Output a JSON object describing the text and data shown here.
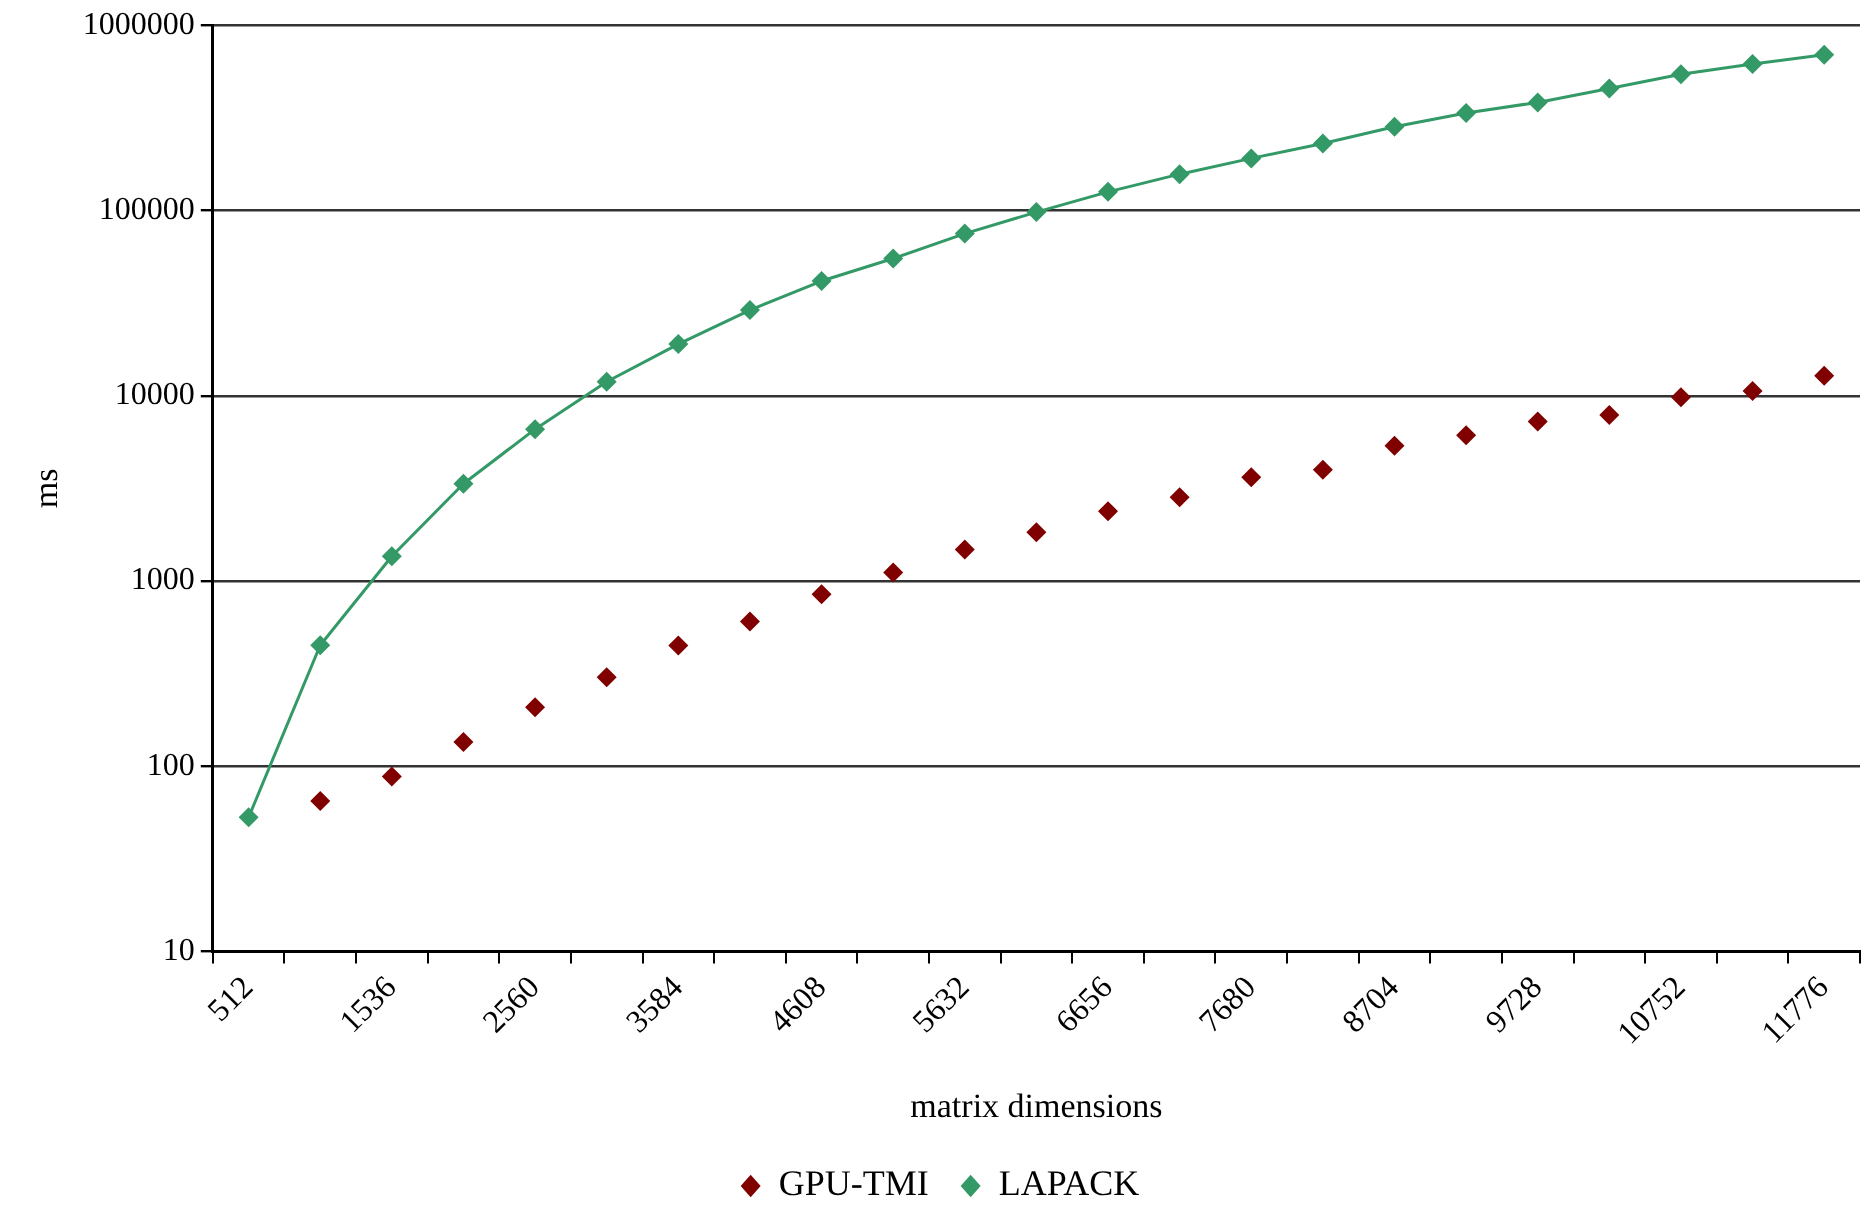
{
  "chart_data": {
    "type": "line",
    "xlabel": "matrix dimensions",
    "ylabel": "ms",
    "categories": [
      "512",
      null,
      "1536",
      null,
      "2560",
      null,
      "3584",
      null,
      "4608",
      null,
      "5632",
      null,
      "6656",
      null,
      "7680",
      null,
      "8704",
      null,
      "9728",
      null,
      "10752",
      null,
      "11776"
    ],
    "series": [
      {
        "name": "GPU-TMI",
        "type": "scatter",
        "color": "#800000",
        "values": [
          null,
          65,
          88,
          135,
          208,
          302,
          448,
          605,
          849,
          1110,
          1480,
          1830,
          2380,
          2830,
          3630,
          3980,
          5370,
          6110,
          7260,
          7880,
          9800,
          10600,
          12800
        ]
      },
      {
        "name": "LAPACK",
        "color": "#339966",
        "values": [
          53,
          450,
          1360,
          3350,
          6600,
          11900,
          19000,
          29000,
          41600,
          55000,
          75000,
          98000,
          126000,
          157000,
          191000,
          230000,
          283000,
          336000,
          383000,
          455000,
          543000,
          617000,
          692000
        ]
      }
    ],
    "log": "y",
    "ylim": [
      10,
      1000000
    ],
    "yticks": [
      10,
      100,
      1000,
      10000,
      100000,
      1000000
    ],
    "grid": "y",
    "legend": "bottom",
    "marker": "diamond",
    "line_style": "solid"
  }
}
